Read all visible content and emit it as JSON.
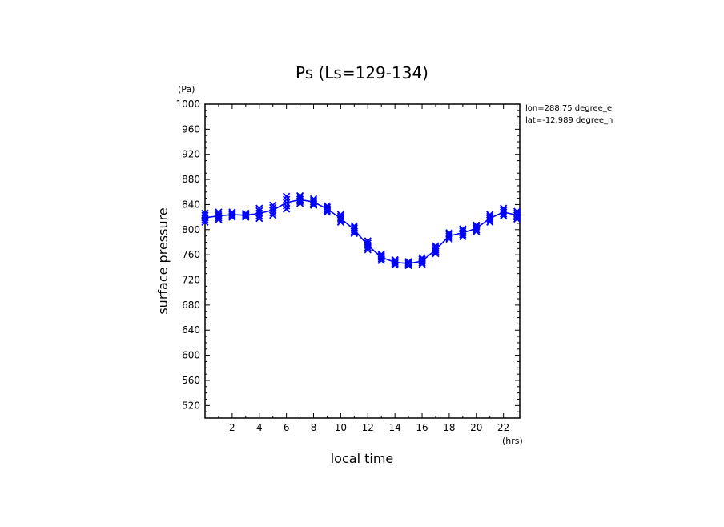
{
  "chart_data": {
    "type": "line",
    "title": "Ps (Ls=129-134)",
    "xlabel": "local time",
    "ylabel": "surface pressure",
    "x_unit": "(hrs)",
    "y_unit": "(Pa)",
    "xlim": [
      0,
      23.2
    ],
    "ylim": [
      500,
      1000
    ],
    "xticks": [
      2,
      4,
      6,
      8,
      10,
      12,
      14,
      16,
      18,
      20,
      22
    ],
    "yticks": [
      520,
      560,
      600,
      640,
      680,
      720,
      760,
      800,
      840,
      880,
      920,
      960,
      1000
    ],
    "grid": false,
    "annotations": [
      "lon=288.75 degree_e",
      "lat=-12.989 degree_n"
    ],
    "series": [
      {
        "color": "#0000ff",
        "marker": "x",
        "x": [
          0,
          1,
          2,
          3,
          4,
          5,
          6,
          7,
          8,
          9,
          10,
          11,
          12,
          13,
          14,
          15,
          16,
          17,
          18,
          19,
          20,
          21,
          22,
          23
        ],
        "y": [
          819,
          822,
          824,
          823,
          826,
          831,
          843,
          848,
          844,
          833,
          818,
          800,
          775,
          756,
          748,
          746,
          750,
          768,
          790,
          795,
          802,
          818,
          828,
          823
        ],
        "scatter_spread": [
          7,
          6,
          4,
          3,
          8,
          8,
          10,
          6,
          5,
          5,
          6,
          6,
          7,
          5,
          4,
          3,
          5,
          6,
          5,
          6,
          5,
          6,
          6,
          6
        ]
      }
    ]
  }
}
